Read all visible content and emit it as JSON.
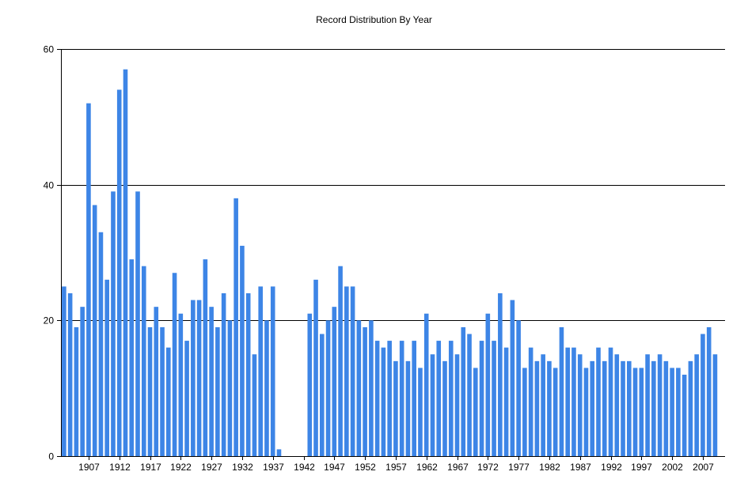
{
  "chart_data": {
    "type": "bar",
    "title": "Record Distribution By Year",
    "xlabel": "",
    "ylabel": "",
    "ylim": [
      0,
      60
    ],
    "y_ticks": [
      0,
      20,
      40,
      60
    ],
    "grid": "horizontal",
    "bar_color": "#3d85e6",
    "x_tick_labels": [
      "1907",
      "1912",
      "1917",
      "1922",
      "1927",
      "1932",
      "1937",
      "1942",
      "1947",
      "1952",
      "1957",
      "1962",
      "1967",
      "1972",
      "1977",
      "1982",
      "1987",
      "1992",
      "1997",
      "2002",
      "2007"
    ],
    "categories": [
      1903,
      1904,
      1905,
      1906,
      1907,
      1908,
      1909,
      1910,
      1911,
      1912,
      1913,
      1914,
      1915,
      1916,
      1917,
      1918,
      1919,
      1920,
      1921,
      1922,
      1923,
      1924,
      1925,
      1926,
      1927,
      1928,
      1929,
      1930,
      1931,
      1932,
      1933,
      1934,
      1935,
      1936,
      1937,
      1938,
      1939,
      1940,
      1941,
      1942,
      1943,
      1944,
      1945,
      1946,
      1947,
      1948,
      1949,
      1950,
      1951,
      1952,
      1953,
      1954,
      1955,
      1956,
      1957,
      1958,
      1959,
      1960,
      1961,
      1962,
      1963,
      1964,
      1965,
      1966,
      1967,
      1968,
      1969,
      1970,
      1971,
      1972,
      1973,
      1974,
      1975,
      1976,
      1977,
      1978,
      1979,
      1980,
      1981,
      1982,
      1983,
      1984,
      1985,
      1986,
      1987,
      1988,
      1989,
      1990,
      1991,
      1992,
      1993,
      1994,
      1995,
      1996,
      1997,
      1998,
      1999,
      2000,
      2001,
      2002,
      2003,
      2004,
      2005,
      2006,
      2007,
      2008,
      2009
    ],
    "values": [
      25,
      24,
      19,
      22,
      52,
      37,
      33,
      26,
      39,
      54,
      57,
      29,
      39,
      28,
      19,
      22,
      19,
      16,
      27,
      21,
      17,
      23,
      23,
      29,
      22,
      19,
      24,
      20,
      38,
      31,
      24,
      15,
      25,
      20,
      25,
      1,
      0,
      0,
      0,
      0,
      21,
      26,
      18,
      20,
      22,
      28,
      25,
      25,
      20,
      19,
      20,
      17,
      16,
      17,
      14,
      17,
      14,
      17,
      13,
      21,
      15,
      17,
      14,
      17,
      15,
      19,
      18,
      13,
      17,
      21,
      17,
      24,
      16,
      23,
      20,
      13,
      16,
      14,
      15,
      14,
      13,
      19,
      16,
      16,
      15,
      13,
      14,
      16,
      14,
      16,
      15,
      14,
      14,
      13,
      13,
      15,
      14,
      15,
      14,
      13,
      13,
      12,
      14,
      15,
      18,
      19,
      15
    ]
  }
}
